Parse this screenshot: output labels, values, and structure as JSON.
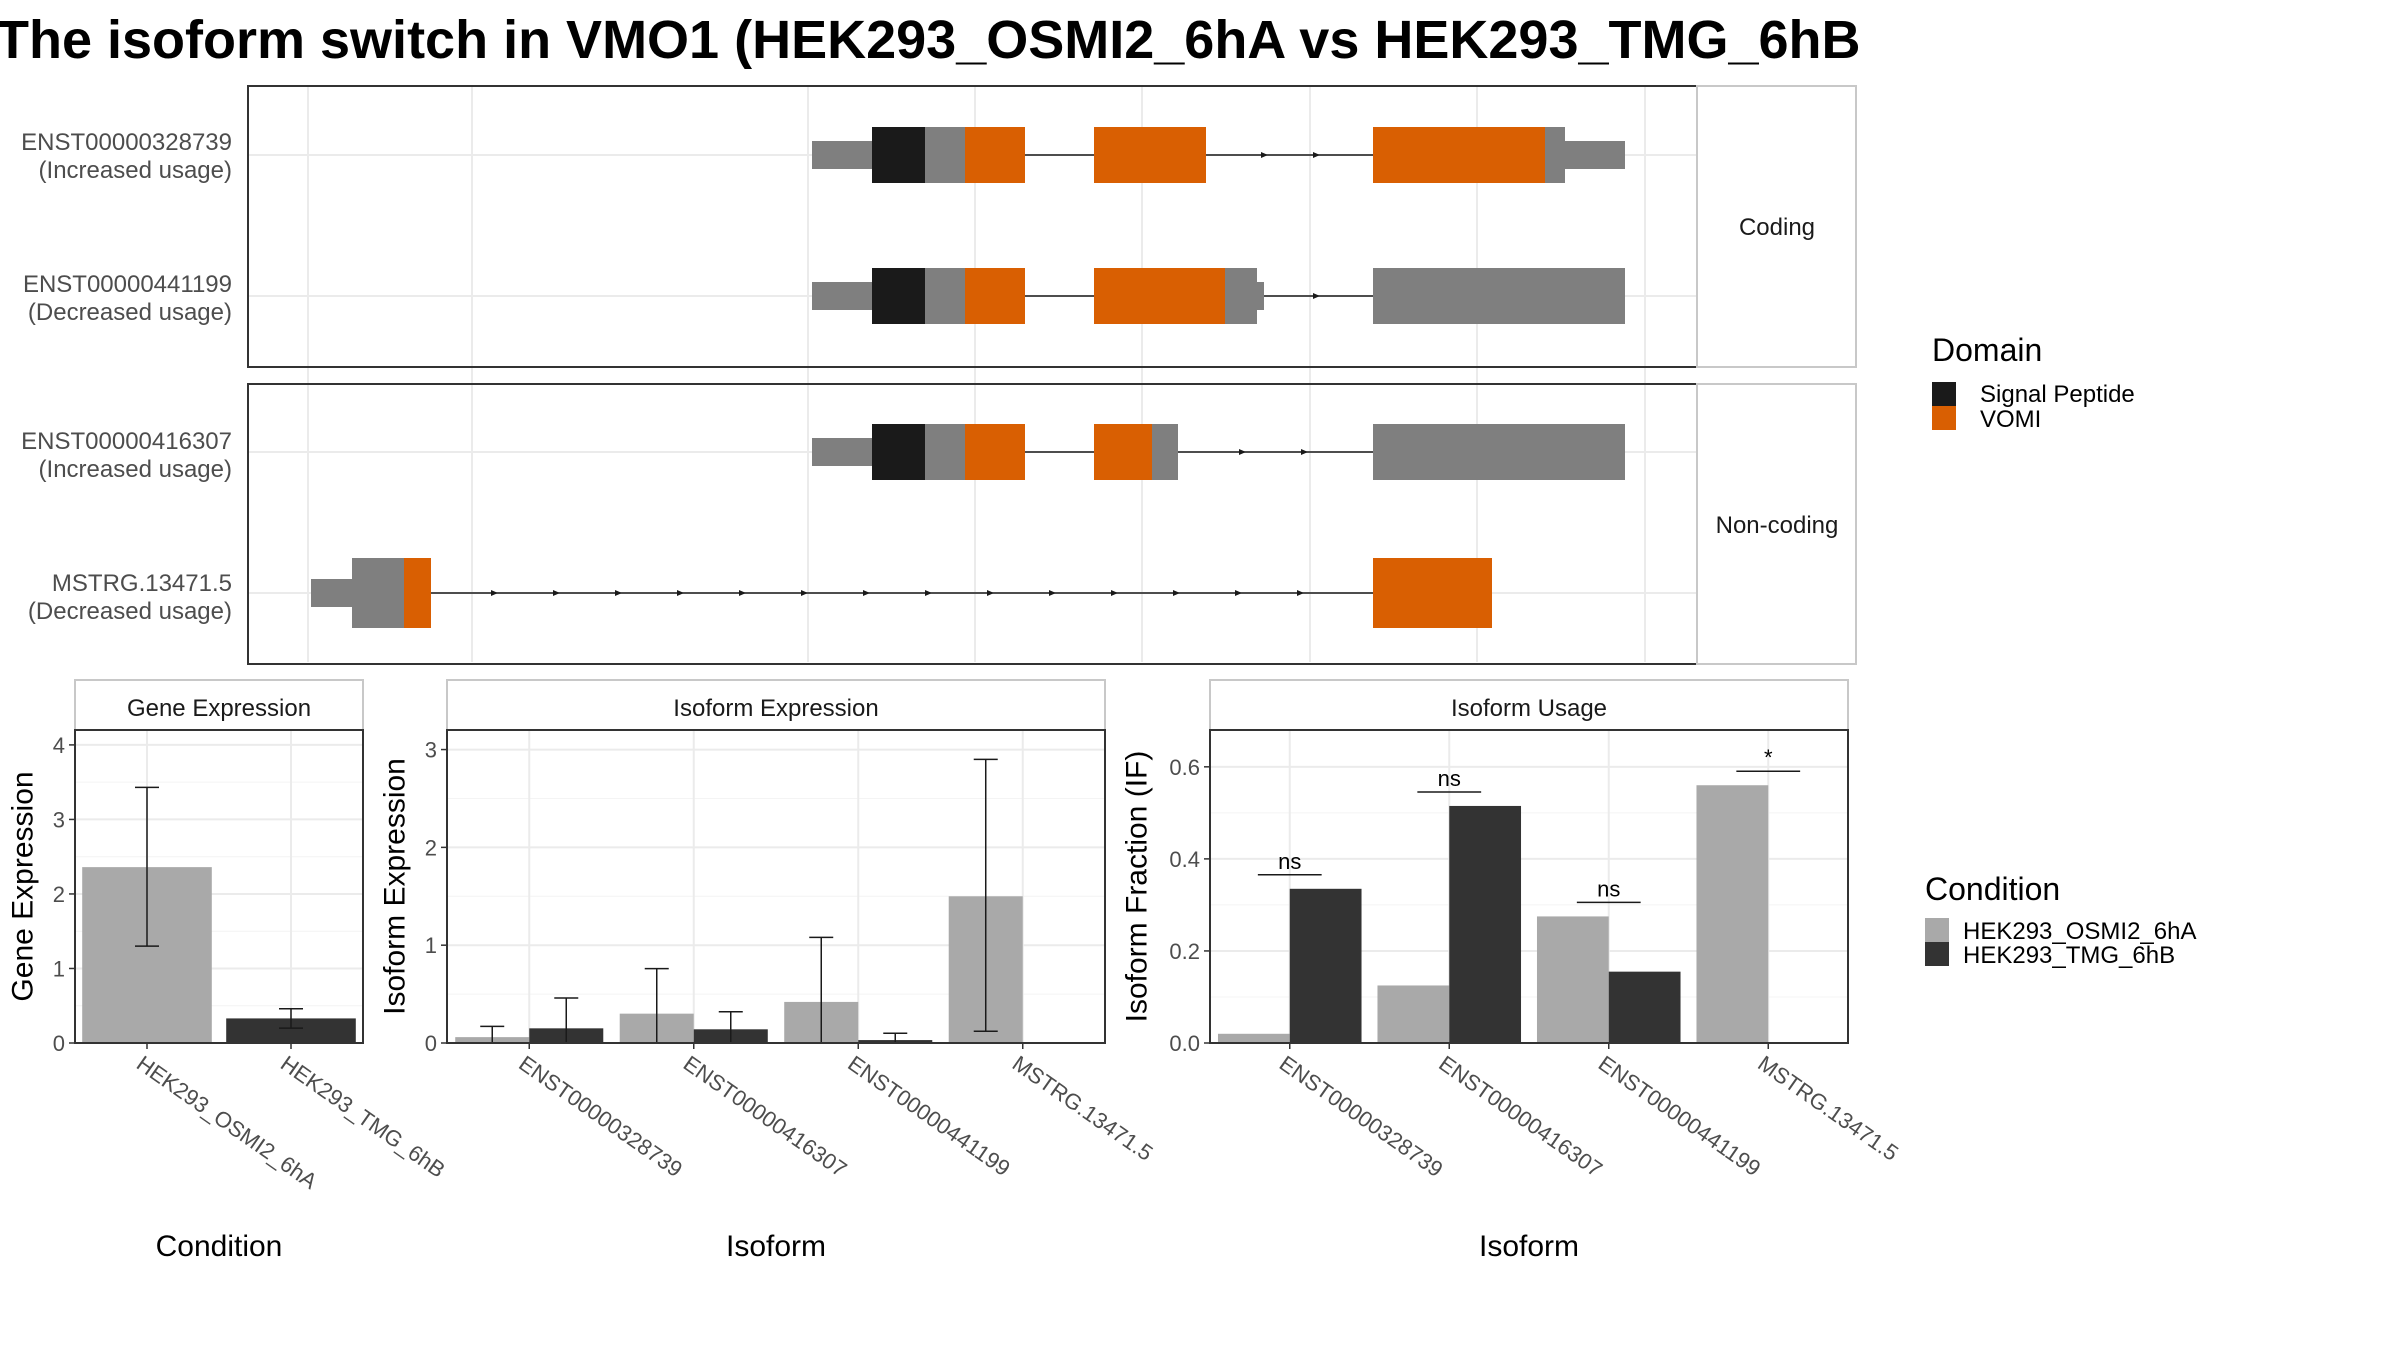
{
  "title": "The isoform switch in VMO1 (HEK293_OSMI2_6hA vs HEK293_TMG_6hB",
  "colors": {
    "exon": "#7f7f7f",
    "signal_peptide": "#1a1a1a",
    "vomi": "#d95f02",
    "cond_a": "#a9a9a9",
    "cond_b": "#333333"
  },
  "transcripts": {
    "facets": [
      "Coding",
      "Non-coding"
    ],
    "rows": [
      {
        "id": "ENST00000328739",
        "note": "(Increased usage)",
        "facet": "Coding"
      },
      {
        "id": "ENST00000441199",
        "note": "(Decreased usage)",
        "facet": "Coding"
      },
      {
        "id": "ENST00000416307",
        "note": "(Increased usage)",
        "facet": "Non-coding"
      },
      {
        "id": "MSTRG.13471.5",
        "note": "(Decreased usage)",
        "facet": "Non-coding"
      }
    ]
  },
  "domain_legend": {
    "title": "Domain",
    "items": [
      {
        "label": "Signal Peptide",
        "color": "#1a1a1a"
      },
      {
        "label": "VOMI",
        "color": "#d95f02"
      }
    ]
  },
  "condition_legend": {
    "title": "Condition",
    "items": [
      {
        "label": "HEK293_OSMI2_6hA",
        "color": "#a9a9a9"
      },
      {
        "label": "HEK293_TMG_6hB",
        "color": "#333333"
      }
    ]
  },
  "chart_data": [
    {
      "type": "bar",
      "title": "Gene Expression",
      "xlabel": "Condition",
      "ylabel": "Gene Expression",
      "ylim": [
        0,
        4.2
      ],
      "yticks": [
        0,
        1,
        2,
        3,
        4
      ],
      "categories": [
        "HEK293_OSMI2_6hA",
        "HEK293_TMG_6hB"
      ],
      "values": [
        2.36,
        0.33
      ],
      "errors": [
        [
          1.3,
          3.43
        ],
        [
          0.2,
          0.46
        ]
      ]
    },
    {
      "type": "bar",
      "title": "Isoform Expression",
      "xlabel": "Isoform",
      "ylabel": "Isoform Expression",
      "ylim": [
        0,
        3.2
      ],
      "yticks": [
        0,
        1,
        2,
        3
      ],
      "categories": [
        "ENST00000328739",
        "ENST00000416307",
        "ENST00000441199",
        "MSTRG.13471.5"
      ],
      "series": [
        {
          "name": "HEK293_OSMI2_6hA",
          "values": [
            0.06,
            0.3,
            0.42,
            1.5
          ],
          "errors": [
            [
              0,
              0.17
            ],
            [
              0,
              0.76
            ],
            [
              0,
              1.08
            ],
            [
              0.12,
              2.9
            ]
          ]
        },
        {
          "name": "HEK293_TMG_6hB",
          "values": [
            0.15,
            0.14,
            0.03,
            0.0
          ],
          "errors": [
            [
              0,
              0.46
            ],
            [
              0,
              0.32
            ],
            [
              0,
              0.1
            ],
            [
              0,
              0
            ]
          ]
        }
      ]
    },
    {
      "type": "bar",
      "title": "Isoform Usage",
      "xlabel": "Isoform",
      "ylabel": "Isoform Fraction (IF)",
      "ylim": [
        0,
        0.68
      ],
      "yticks": [
        "0.0",
        "0.2",
        "0.4",
        "0.6"
      ],
      "categories": [
        "ENST00000328739",
        "ENST00000416307",
        "ENST00000441199",
        "MSTRG.13471.5"
      ],
      "series": [
        {
          "name": "HEK293_OSMI2_6hA",
          "values": [
            0.02,
            0.125,
            0.275,
            0.56
          ]
        },
        {
          "name": "HEK293_TMG_6hB",
          "values": [
            0.335,
            0.515,
            0.155,
            0.0
          ]
        }
      ],
      "significance": [
        "ns",
        "ns",
        "ns",
        "*"
      ]
    }
  ]
}
